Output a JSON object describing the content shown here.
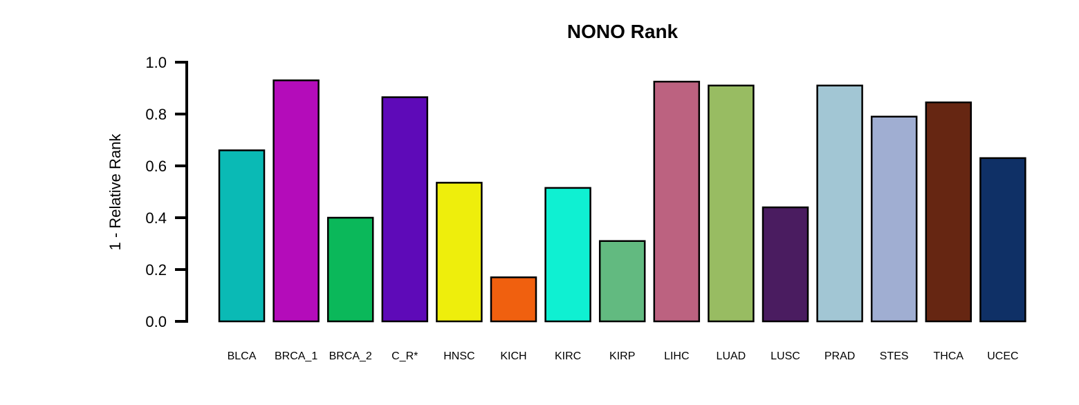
{
  "chart_data": {
    "type": "bar",
    "title": "NONO Rank",
    "xlabel": "",
    "ylabel": "1 - Relative Rank",
    "ylim": [
      0,
      1.0
    ],
    "yticks": [
      "0.0",
      "0.2",
      "0.4",
      "0.6",
      "0.8",
      "1.0"
    ],
    "grid": false,
    "categories": [
      "BLCA",
      "BRCA_1",
      "BRCA_2",
      "C_R*",
      "HNSC",
      "KICH",
      "KIRC",
      "KIRP",
      "LIHC",
      "LUAD",
      "LUSC",
      "PRAD",
      "STES",
      "THCA",
      "UCEC"
    ],
    "values": [
      0.66,
      0.93,
      0.4,
      0.865,
      0.535,
      0.17,
      0.515,
      0.31,
      0.925,
      0.91,
      0.44,
      0.91,
      0.79,
      0.845,
      0.63
    ],
    "colors": [
      "#0ABAB5",
      "#B40CBA",
      "#0BB85A",
      "#5E0AB8",
      "#EEEE0C",
      "#F0600F",
      "#0FF0D2",
      "#62BA80",
      "#BC6280",
      "#98BC62",
      "#4A1C60",
      "#A2C6D4",
      "#A0AED2",
      "#662612",
      "#0F3066"
    ]
  }
}
